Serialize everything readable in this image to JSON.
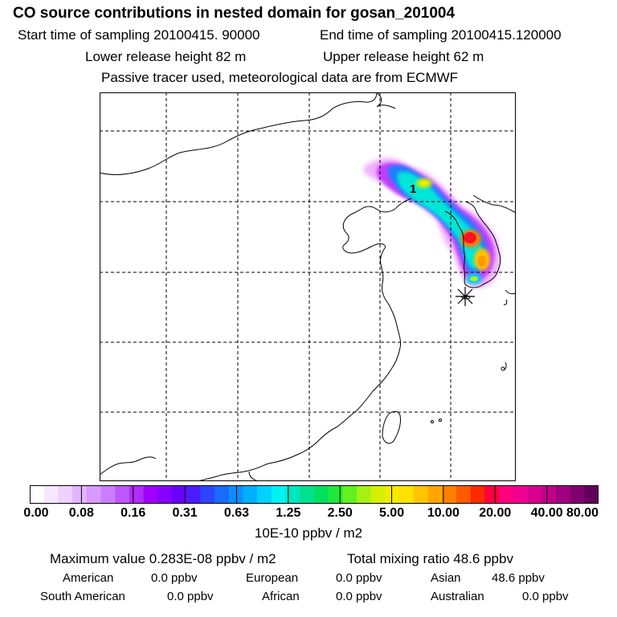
{
  "header": {
    "title": "CO  source contributions in nested domain for gosan_201004",
    "start_label": "Start time of sampling 20100415. 90000",
    "end_label": "End time of sampling 20100415.120000",
    "lower_label": "Lower release height   82 m",
    "upper_label": "Upper release height   62 m",
    "tracer_label": "Passive tracer used, meteorological data are from ECMWF"
  },
  "map": {
    "receptor_marker": "1",
    "station_icon": "asterisk-station-icon"
  },
  "colorbar": {
    "unit": "10E-10 ppbv / m2",
    "ticks": [
      "0.00",
      "0.08",
      "0.16",
      "0.31",
      "0.63",
      "1.25",
      "2.50",
      "5.00",
      "10.00",
      "20.00",
      "40.00",
      "80.00"
    ],
    "colors": [
      "#ffffff",
      "#f7e6ff",
      "#efd0ff",
      "#e2b4ff",
      "#d79aff",
      "#cc7dff",
      "#bf57ff",
      "#b02cff",
      "#a000ff",
      "#8800ff",
      "#6a00ff",
      "#4b1cff",
      "#2e45ff",
      "#1a6bff",
      "#0a8fff",
      "#00b0ff",
      "#00d2ff",
      "#00f2f2",
      "#00e6c0",
      "#00e090",
      "#00e060",
      "#1ee83a",
      "#62f01e",
      "#a6f014",
      "#d4f000",
      "#f2ea00",
      "#ffe000",
      "#ffc400",
      "#ffa500",
      "#ff8000",
      "#ff5a00",
      "#ff2a00",
      "#ff0040",
      "#ff0080",
      "#f00090",
      "#d8008e",
      "#c0008a",
      "#a00080",
      "#800070",
      "#60005a"
    ]
  },
  "footer": {
    "max_label": "Maximum value  0.283E-08 ppbv / m2",
    "total_label": "Total mixing ratio       48.6 ppbv",
    "american_label": "American",
    "american_value": "0.0 ppbv",
    "european_label": "European",
    "european_value": "0.0 ppbv",
    "asian_label": "Asian",
    "asian_value": "48.6 ppbv",
    "south_american_label": "South American",
    "south_american_value": "0.0 ppbv",
    "african_label": "African",
    "african_value": "0.0 ppbv",
    "australian_label": "Australian",
    "australian_value": "0.0 ppbv"
  }
}
